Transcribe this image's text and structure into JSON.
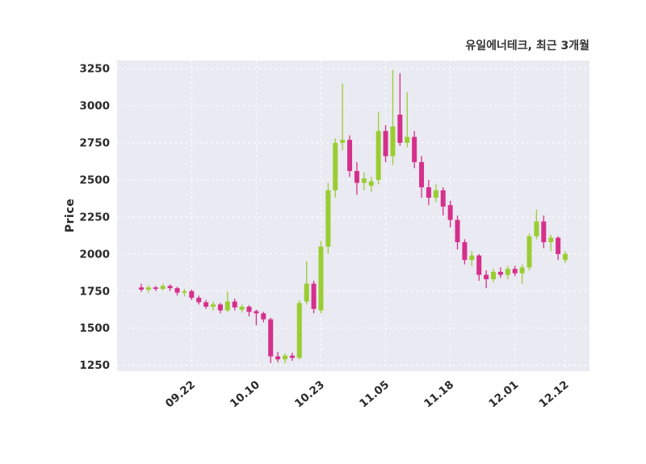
{
  "chart_data": {
    "type": "candlestick",
    "title": "유일에너테크, 최근 3개월",
    "ylabel": "Price",
    "ylim": [
      1210,
      3305
    ],
    "yticks": [
      1250,
      1500,
      1750,
      2000,
      2250,
      2500,
      2750,
      3000,
      3250
    ],
    "xticks": [
      {
        "index": 7,
        "label": "09.22"
      },
      {
        "index": 16,
        "label": "10.10"
      },
      {
        "index": 25,
        "label": "10.23"
      },
      {
        "index": 34,
        "label": "11.05"
      },
      {
        "index": 43,
        "label": "11.18"
      },
      {
        "index": 52,
        "label": "12.01"
      },
      {
        "index": 59,
        "label": "12.12"
      }
    ],
    "grid": "both-dashed",
    "legend": "none",
    "colors": {
      "up": "#9acd32",
      "down": "#d5308c",
      "plot_bg": "#eaeaf2",
      "grid": "#ffffff",
      "figure_bg": "#ffffff",
      "text": "#2b2b2b"
    },
    "ohlc_columns": [
      "open",
      "high",
      "low",
      "close"
    ],
    "ohlc": [
      [
        1775,
        1800,
        1745,
        1760
      ],
      [
        1760,
        1790,
        1740,
        1775
      ],
      [
        1775,
        1785,
        1750,
        1765
      ],
      [
        1765,
        1800,
        1755,
        1785
      ],
      [
        1785,
        1795,
        1750,
        1770
      ],
      [
        1770,
        1780,
        1720,
        1740
      ],
      [
        1740,
        1765,
        1715,
        1750
      ],
      [
        1750,
        1760,
        1690,
        1705
      ],
      [
        1705,
        1720,
        1660,
        1675
      ],
      [
        1675,
        1690,
        1630,
        1645
      ],
      [
        1645,
        1680,
        1620,
        1660
      ],
      [
        1660,
        1670,
        1600,
        1620
      ],
      [
        1620,
        1750,
        1610,
        1680
      ],
      [
        1680,
        1700,
        1620,
        1640
      ],
      [
        1625,
        1660,
        1605,
        1645
      ],
      [
        1645,
        1655,
        1580,
        1610
      ],
      [
        1615,
        1625,
        1520,
        1600
      ],
      [
        1600,
        1610,
        1540,
        1560
      ],
      [
        1560,
        1570,
        1265,
        1310
      ],
      [
        1310,
        1340,
        1270,
        1290
      ],
      [
        1290,
        1330,
        1265,
        1315
      ],
      [
        1315,
        1335,
        1280,
        1300
      ],
      [
        1300,
        1690,
        1290,
        1670
      ],
      [
        1680,
        1950,
        1660,
        1800
      ],
      [
        1800,
        1820,
        1600,
        1630
      ],
      [
        1620,
        2090,
        1600,
        2050
      ],
      [
        2050,
        2480,
        2000,
        2430
      ],
      [
        2430,
        2780,
        2380,
        2750
      ],
      [
        2750,
        3150,
        2700,
        2770
      ],
      [
        2770,
        2800,
        2520,
        2560
      ],
      [
        2560,
        2620,
        2400,
        2480
      ],
      [
        2480,
        2550,
        2430,
        2510
      ],
      [
        2460,
        2520,
        2420,
        2490
      ],
      [
        2500,
        2960,
        2470,
        2830
      ],
      [
        2830,
        2870,
        2620,
        2660
      ],
      [
        2660,
        3240,
        2600,
        2860
      ],
      [
        2940,
        3220,
        2730,
        2750
      ],
      [
        2750,
        3090,
        2720,
        2790
      ],
      [
        2790,
        2830,
        2580,
        2620
      ],
      [
        2620,
        2660,
        2380,
        2450
      ],
      [
        2450,
        2500,
        2330,
        2380
      ],
      [
        2380,
        2470,
        2350,
        2430
      ],
      [
        2430,
        2450,
        2260,
        2320
      ],
      [
        2330,
        2360,
        2180,
        2230
      ],
      [
        2230,
        2260,
        2030,
        2080
      ],
      [
        2080,
        2100,
        1930,
        1960
      ],
      [
        1960,
        2020,
        1920,
        1990
      ],
      [
        1990,
        2000,
        1820,
        1860
      ],
      [
        1860,
        1890,
        1770,
        1830
      ],
      [
        1830,
        1900,
        1810,
        1880
      ],
      [
        1880,
        1910,
        1840,
        1860
      ],
      [
        1860,
        1920,
        1830,
        1900
      ],
      [
        1900,
        1920,
        1850,
        1870
      ],
      [
        1870,
        1930,
        1800,
        1910
      ],
      [
        1910,
        2140,
        1890,
        2120
      ],
      [
        2120,
        2300,
        2100,
        2220
      ],
      [
        2220,
        2260,
        2040,
        2080
      ],
      [
        2080,
        2130,
        2020,
        2110
      ],
      [
        2110,
        2120,
        1960,
        2000
      ],
      [
        1960,
        2020,
        1940,
        2000
      ]
    ]
  }
}
